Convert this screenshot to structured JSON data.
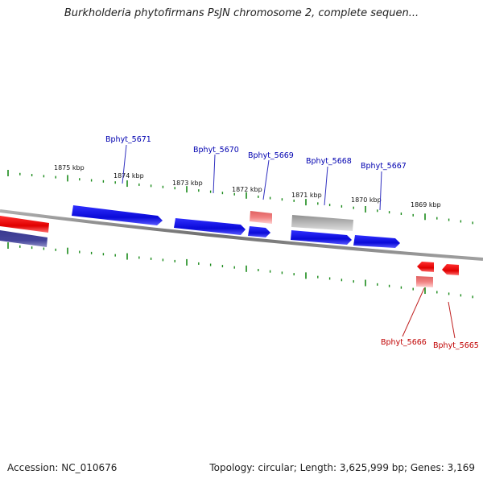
{
  "title": "Burkholderia phytofirmans PsJN chromosome 2, complete sequen...",
  "footer": {
    "accession": "Accession: NC_010676",
    "topology": "Topology: circular; Length: 3,625,999 bp; Genes: 3,169"
  },
  "colors": {
    "forward_gene": "#1010e0",
    "reverse_gene": "#e00000",
    "forward_label": "#0000b0",
    "reverse_label": "#c00000",
    "ticks": "#1a8a1a",
    "backbone": "#808080"
  },
  "kbp_labels": [
    "1875 kbp",
    "1874 kbp",
    "1873 kbp",
    "1872 kbp",
    "1871 kbp",
    "1870 kbp",
    "1869 kbp"
  ],
  "genes_forward": [
    "Bphyt_5671",
    "Bphyt_5670",
    "Bphyt_5669",
    "Bphyt_5668",
    "Bphyt_5667"
  ],
  "genes_reverse": [
    "Bphyt_5666",
    "Bphyt_5665"
  ]
}
